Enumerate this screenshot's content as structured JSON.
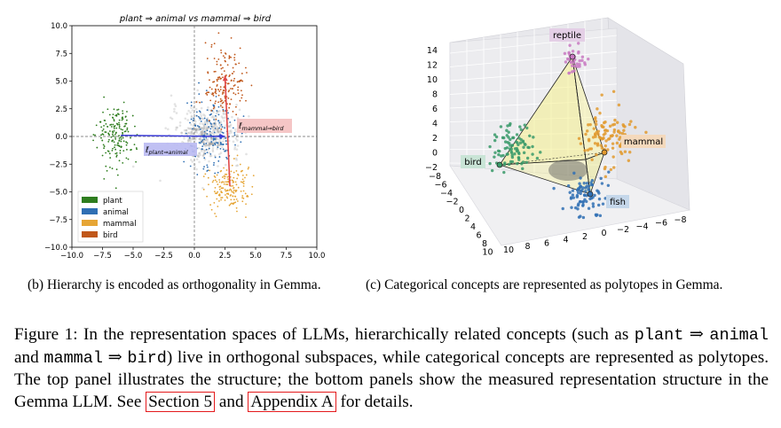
{
  "panel_b": {
    "caption": "(b) Hierarchy is encoded as orthogonality in Gemma."
  },
  "panel_c": {
    "caption": "(c) Categorical concepts are represented as polytopes in Gemma."
  },
  "figure_caption": {
    "p1": "Figure 1: In the representation spaces of LLMs, hierarchically related concepts (such as ",
    "code1": "plant",
    "arrow1": " ⇒ ",
    "code2": "animal",
    "p2": " and ",
    "code3": "mammal",
    "arrow2": " ⇒ ",
    "code4": "bird",
    "p3": ") live in orthogonal subspaces, while categorical concepts are represented as polytopes. The top panel illustrates the structure; the bottom panels show the measured representation structure in the Gemma LLM. See ",
    "ref1": "Section 5",
    "p4": " and ",
    "ref2": "Appendix A",
    "p5": " for details."
  },
  "chart_data": [
    {
      "type": "scatter",
      "title": "plant ⇒ animal vs mammal ⇒ bird",
      "xlim": [
        -10,
        10
      ],
      "ylim": [
        -10,
        10
      ],
      "xticks": [
        "−10.0",
        "−7.5",
        "−5.0",
        "−2.5",
        "0.0",
        "2.5",
        "5.0",
        "7.5",
        "10.0"
      ],
      "yticks": [
        "10.0",
        "7.5",
        "5.0",
        "2.5",
        "0.0",
        "−2.5",
        "−5.0",
        "−7.5",
        "−10.0"
      ],
      "grid": false,
      "legend_position": "lower-left",
      "series": [
        {
          "name": "plant",
          "color": "#2e7d1e",
          "center": [
            -6.4,
            0.1
          ],
          "spread": [
            0.75,
            1.5
          ]
        },
        {
          "name": "animal",
          "color": "#2f6fb3",
          "center": [
            1.3,
            0.3
          ],
          "spread": [
            1.0,
            1.6
          ]
        },
        {
          "name": "mammal",
          "color": "#e6a535",
          "center": [
            2.8,
            -4.6
          ],
          "spread": [
            0.9,
            1.0
          ]
        },
        {
          "name": "bird",
          "color": "#c0571a",
          "center": [
            2.5,
            4.8
          ],
          "spread": [
            0.8,
            1.5
          ]
        }
      ],
      "vectors": [
        {
          "label": "ℓ̄plant⇒animal",
          "from": [
            -6.0,
            0.1
          ],
          "to": [
            2.5,
            0.0
          ],
          "color": "#3a3ad6"
        },
        {
          "label": "ℓ̄mammal⇒bird",
          "from": [
            2.9,
            -4.5
          ],
          "to": [
            2.5,
            5.5
          ],
          "color": "#e04848"
        }
      ]
    },
    {
      "type": "scatter",
      "title": "",
      "projection": "3d",
      "z_ticks": [
        "14",
        "12",
        "10",
        "8",
        "6",
        "4",
        "2",
        "0",
        "−2"
      ],
      "left_axis_ticks": [
        "−8",
        "−6",
        "−4",
        "−2",
        "0",
        "2",
        "4",
        "6",
        "8",
        "10"
      ],
      "bottom_axis_ticks": [
        "10",
        "8",
        "6",
        "4",
        "2",
        "0",
        "−2",
        "−4",
        "−6",
        "−8"
      ],
      "series": [
        {
          "name": "reptile",
          "color": "#c97ac2"
        },
        {
          "name": "mammal",
          "color": "#e29a2e"
        },
        {
          "name": "bird",
          "color": "#3a9a6a"
        },
        {
          "name": "fish",
          "color": "#3070b4"
        }
      ]
    }
  ]
}
